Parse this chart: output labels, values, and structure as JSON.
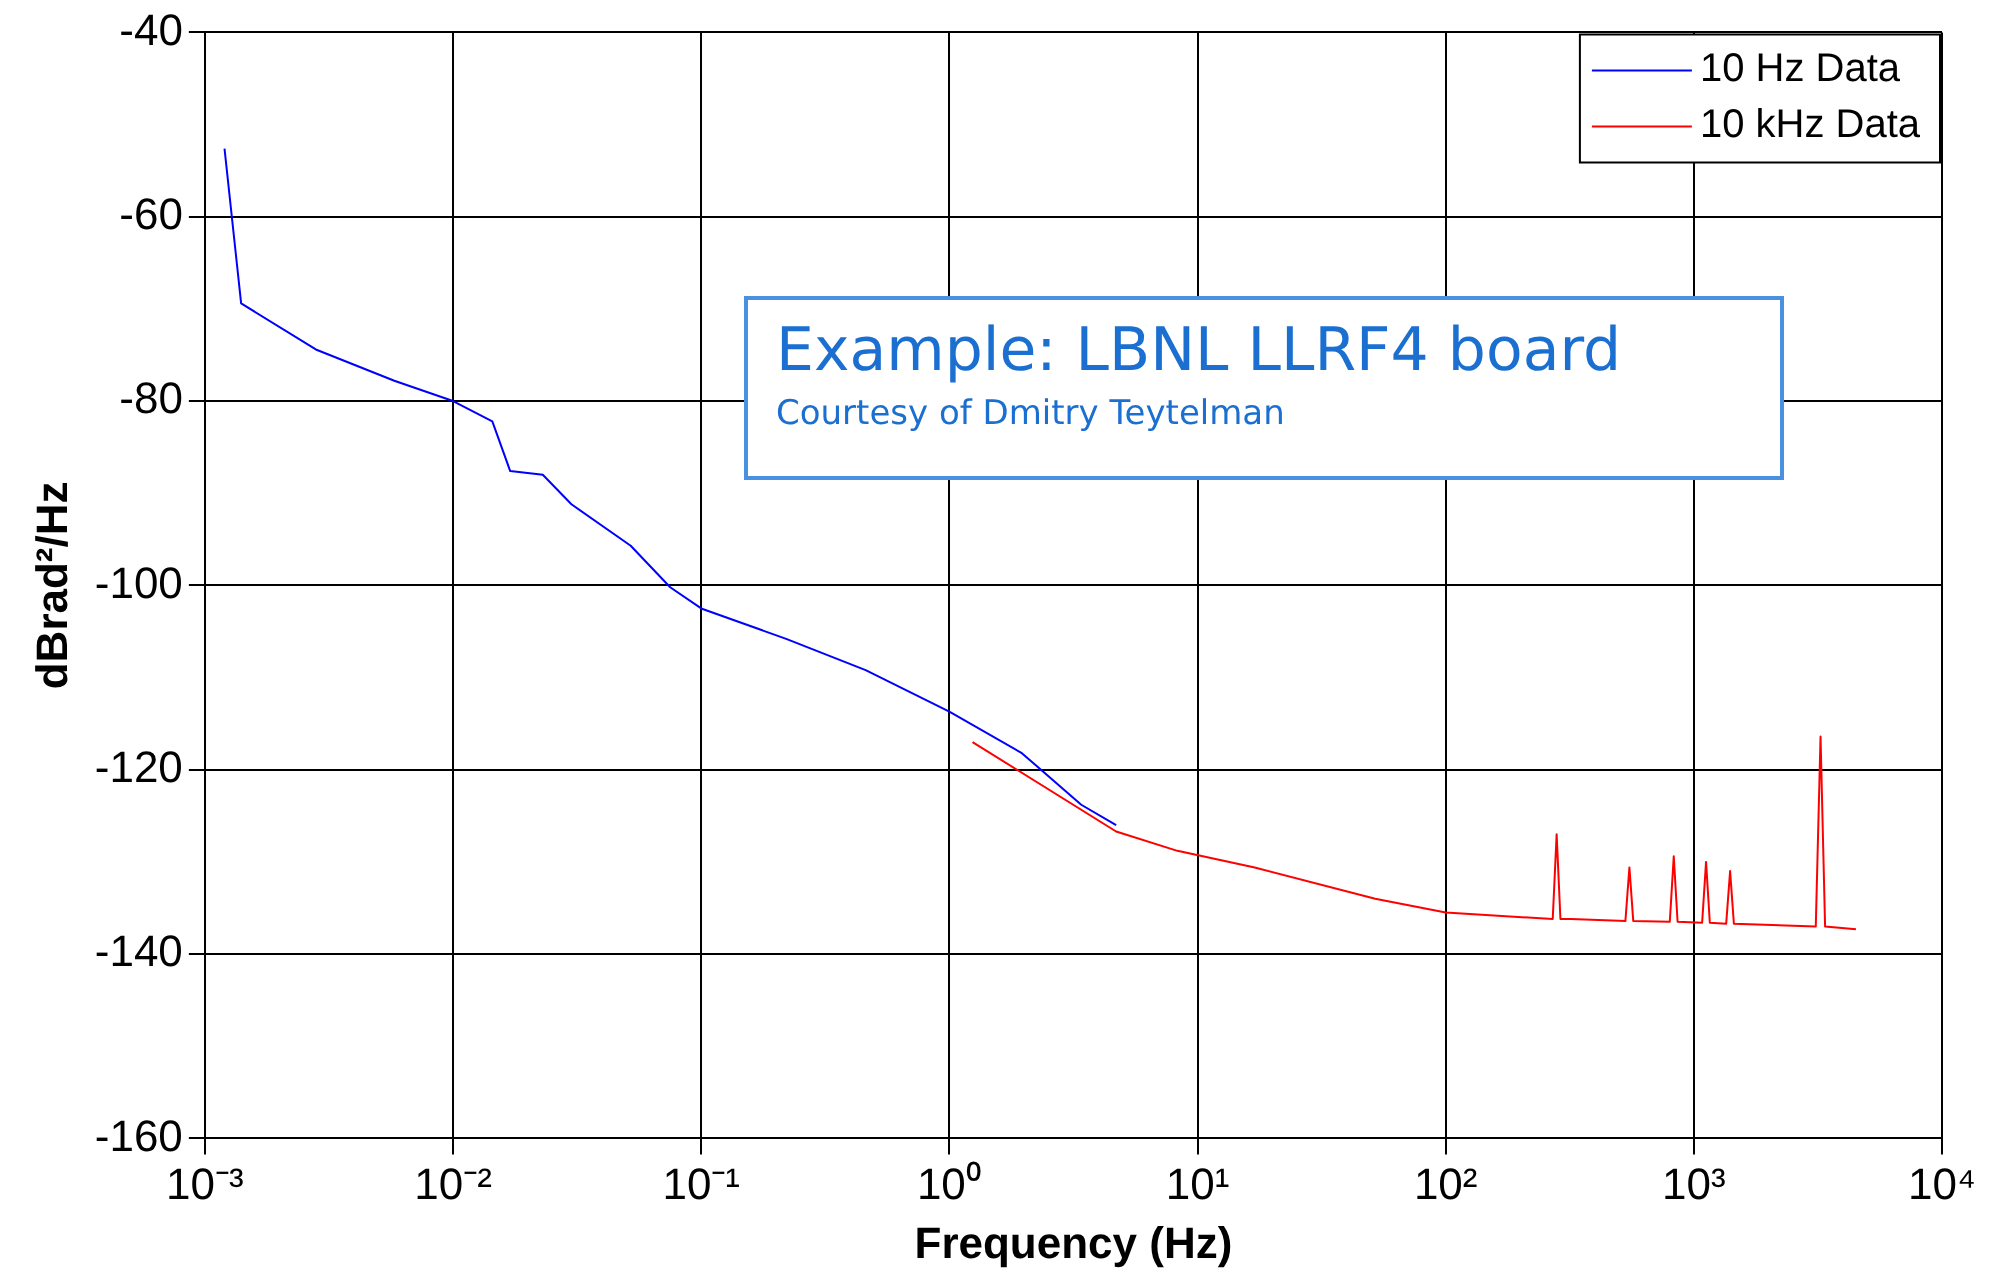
{
  "chart_data": {
    "type": "line",
    "xlabel": "Frequency (Hz)",
    "ylabel": "dBrad²/Hz",
    "log": "x",
    "xlim": [
      0.001,
      10000
    ],
    "xticks": [
      {
        "value": 0.001,
        "label": "10⁻³"
      },
      {
        "value": 0.01,
        "label": "10⁻²"
      },
      {
        "value": 0.1,
        "label": "10⁻¹"
      },
      {
        "value": 1,
        "label": "10⁰"
      },
      {
        "value": 10,
        "label": "10¹"
      },
      {
        "value": 100,
        "label": "10²"
      },
      {
        "value": 1000,
        "label": "10³"
      },
      {
        "value": 10000,
        "label": "10⁴"
      }
    ],
    "ylim": [
      -160,
      -40
    ],
    "yticks": [
      -160,
      -140,
      -120,
      -100,
      -80,
      -60,
      -40
    ],
    "grid": true,
    "legend": "top right",
    "marker": "none",
    "line_style": "solid",
    "annotations": [
      "Example: LBNL LLRF4 board",
      "Courtesy of Dmitry Teytelman"
    ],
    "series": [
      {
        "name": "10 Hz Data",
        "color": "#0000ff",
        "x": [
          0.0012,
          0.0014,
          0.0028,
          0.0058,
          0.01,
          0.0144,
          0.017,
          0.023,
          0.03,
          0.052,
          0.075,
          0.1,
          0.22,
          0.46,
          1,
          1.96,
          3.4,
          4.7
        ],
        "values": [
          -52.6,
          -69.4,
          -74.4,
          -77.8,
          -80,
          -82.2,
          -87.6,
          -88,
          -91.2,
          -95.7,
          -100.2,
          -102.5,
          -105.8,
          -109.2,
          -113.7,
          -118.2,
          -123.8,
          -126
        ]
      },
      {
        "name": "10 kHz Data",
        "color": "#ff0000",
        "x": [
          1.24,
          4.7,
          8.3,
          17,
          52,
          100,
          270,
          280,
          290,
          320,
          530,
          550,
          570,
          800,
          830,
          860,
          1080,
          1120,
          1160,
          1350,
          1400,
          1450,
          3100,
          3240,
          3380,
          4500
        ],
        "values": [
          -117,
          -126.7,
          -128.8,
          -130.6,
          -134,
          -135.5,
          -136.2,
          -127,
          -136.2,
          -136.2,
          -136.4,
          -130.6,
          -136.4,
          -136.5,
          -129.4,
          -136.5,
          -136.6,
          -130,
          -136.6,
          -136.7,
          -131,
          -136.7,
          -137,
          -116.4,
          -137,
          -137.3
        ]
      }
    ]
  }
}
